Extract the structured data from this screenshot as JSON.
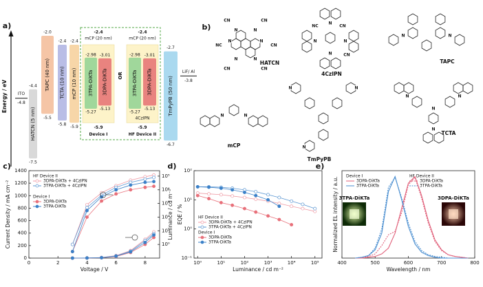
{
  "energy_diagram": {
    "label": "a)",
    "axis_label": "Energy / eV",
    "ito": {
      "name": "ITO",
      "level": {
        "value": -4.8,
        "label": "-4.8"
      }
    },
    "layers": [
      {
        "name": "HATCN (5 nm)",
        "color": "#d9d9d9",
        "lumo": {
          "value": -4.4,
          "label": "-4.4"
        },
        "homo": {
          "value": -7.5,
          "label": "-7.5"
        }
      },
      {
        "name": "TAPC (40 nm)",
        "color": "#f5c5a6",
        "lumo": {
          "value": -2.0,
          "label": "-2.0"
        },
        "homo": {
          "value": -5.5,
          "label": "-5.5"
        }
      },
      {
        "name": "TCTA (10 nm)",
        "color": "#b9bde6",
        "lumo": {
          "value": -2.4,
          "label": "-2.4"
        },
        "homo": {
          "value": -5.8,
          "label": "-5.8"
        }
      },
      {
        "name": "mCP (10 nm)",
        "color": "#f7d6a8",
        "lumo": {
          "value": -2.4,
          "label": "-2.4"
        },
        "homo": {
          "value": -5.9,
          "label": "-5.9"
        }
      },
      {
        "name": "TmPyPB (50 nm)",
        "color": "#aad9ef",
        "lumo": {
          "value": -2.7,
          "label": "-2.7"
        },
        "homo": {
          "value": -6.7,
          "label": "-6.7"
        }
      }
    ],
    "devices": [
      {
        "name": "Device I",
        "host": {
          "name": "mCP (20 nm)",
          "color": "#fdf3c9",
          "lumo": {
            "value": -2.4,
            "label": "-2.4"
          },
          "homo": {
            "value": -5.9,
            "label": "-5.9"
          }
        },
        "emitters": [
          {
            "name": "3TPA-DiKTa",
            "color": "#a0d79b",
            "lumo": {
              "value": -2.98,
              "label": "-2.98"
            },
            "homo": {
              "value": -5.27,
              "label": "-5.27"
            }
          },
          {
            "name": "3DPA-DiKTa",
            "color": "#e9837f",
            "lumo": {
              "value": -3.01,
              "label": "-3.01"
            },
            "homo": {
              "value": -5.13,
              "label": "-5.13"
            }
          }
        ]
      },
      {
        "name": "HF Device II",
        "dopant": "4CzIPN",
        "host": {
          "name": "mCP (20 nm)",
          "color": "#fdf3c9",
          "lumo": {
            "value": -2.4,
            "label": "-2.4"
          },
          "homo": {
            "value": -5.9,
            "label": "-5.9"
          }
        },
        "emitters": [
          {
            "name": "3TPA-DiKTa",
            "color": "#a0d79b",
            "lumo": {
              "value": -2.98,
              "label": "-2.98"
            },
            "homo": {
              "value": -5.27,
              "label": "-5.27"
            }
          },
          {
            "name": "3DPA-DiKTa",
            "color": "#e9837f",
            "lumo": {
              "value": -3.01,
              "label": "-3.01"
            },
            "homo": {
              "value": -5.13,
              "label": "-5.13"
            }
          }
        ]
      }
    ],
    "separator": "OR",
    "cathode": {
      "name": "LiF/ Al",
      "level": {
        "value": -3.8,
        "label": "-3.8"
      }
    }
  },
  "structures": {
    "label": "b)",
    "molecules": [
      {
        "name": "HATCN",
        "atoms": [
          "CN",
          "CN",
          "NC",
          "CN",
          "CN",
          "CN",
          "N",
          "N",
          "N",
          "N",
          "N",
          "N"
        ]
      },
      {
        "name": "4CzIPN",
        "atoms": [
          "CN",
          "NC",
          "CN",
          "N",
          "N",
          "N",
          "N"
        ]
      },
      {
        "name": "TAPC",
        "atoms": [
          "N",
          "N"
        ]
      },
      {
        "name": "TCTA",
        "atoms": [
          "N",
          "N",
          "N",
          "N"
        ]
      },
      {
        "name": "mCP",
        "atoms": [
          "N",
          "N"
        ]
      },
      {
        "name": "TmPyPB",
        "atoms": [
          "N",
          "N",
          "N"
        ]
      }
    ]
  },
  "chart_data": [
    {
      "type": "line",
      "panel_label": "c)",
      "xlabel": "Voltage / V",
      "ylabel": "Current Density / mA cm⁻²",
      "y2label": "Luminance / cd m⁻²",
      "markers": true,
      "x": [
        3,
        4,
        5,
        6,
        7,
        8,
        8.6
      ],
      "xlim": [
        0,
        9
      ],
      "xticks": [
        0,
        2,
        4,
        6,
        8
      ],
      "ylim": [
        0,
        1400
      ],
      "yticks": [
        0,
        200,
        400,
        600,
        800,
        1000,
        1200,
        1400
      ],
      "y2lim": [
        0.1,
        250000
      ],
      "y2log": true,
      "y2ticks": [
        {
          "value": 1,
          "label": "10⁰"
        },
        {
          "value": 10,
          "label": "10¹"
        },
        {
          "value": 100,
          "label": "10²"
        },
        {
          "value": 1000,
          "label": "10³"
        },
        {
          "value": 10000,
          "label": "10⁴"
        },
        {
          "value": 100000,
          "label": "10⁵"
        }
      ],
      "groups": [
        {
          "title": "HF Device II",
          "series": [
            {
              "name": "3DPA-DiKTa + 4CzIPN",
              "color": "#ef9aa4",
              "filled": false,
              "values": [
                0,
                2,
                10,
                40,
                120,
                300,
                420
              ],
              "y2_values": [
                1,
                800,
                6000,
                20000,
                50000,
                90000,
                120000
              ]
            },
            {
              "name": "3TPA-DiKTa + 4CzIPN",
              "color": "#5a96d2",
              "filled": false,
              "values": [
                0,
                2,
                8,
                35,
                110,
                280,
                390
              ],
              "y2_values": [
                1,
                500,
                4000,
                15000,
                35000,
                60000,
                80000
              ]
            }
          ]
        },
        {
          "title": "Device I",
          "series": [
            {
              "name": "3DPA-DiKTa",
              "color": "#e8707a",
              "filled": true,
              "values": [
                0,
                1,
                5,
                25,
                90,
                220,
                330
              ],
              "y2_values": [
                0.3,
                100,
                1500,
                5000,
                10000,
                15000,
                18000
              ]
            },
            {
              "name": "3TPA-DiKTa",
              "color": "#3a80c8",
              "filled": true,
              "values": [
                0,
                1,
                6,
                30,
                100,
                250,
                370
              ],
              "y2_values": [
                0.3,
                300,
                3000,
                10000,
                22000,
                35000,
                40000
              ]
            }
          ]
        }
      ]
    },
    {
      "type": "line",
      "panel_label": "d)",
      "xlabel": "Luminance / cd m⁻²",
      "ylabel": "EQE / %",
      "markers": true,
      "xlog": true,
      "ylog": true,
      "xlim": [
        0.7,
        200000
      ],
      "ylim": [
        0.1,
        100
      ],
      "xticks": [
        {
          "value": 1,
          "label": "10⁰"
        },
        {
          "value": 10,
          "label": "10¹"
        },
        {
          "value": 100,
          "label": "10²"
        },
        {
          "value": 1000,
          "label": "10³"
        },
        {
          "value": 10000,
          "label": "10⁴"
        },
        {
          "value": 100000,
          "label": "10⁵"
        }
      ],
      "yticks": [
        {
          "value": 0.1,
          "label": "10⁻¹"
        },
        {
          "value": 1,
          "label": "10⁰"
        },
        {
          "value": 10,
          "label": "10¹"
        },
        {
          "value": 100,
          "label": "10²"
        }
      ],
      "groups": [
        {
          "title": "HF Device II",
          "series": [
            {
              "name": "3DPA-DiKTa + 4CzIPN",
              "color": "#ef9aa4",
              "filled": false,
              "x": [
                1,
                3,
                10,
                30,
                100,
                300,
                1000,
                3000,
                10000,
                30000,
                100000
              ],
              "values": [
                17,
                16,
                15,
                13.5,
                12,
                10.5,
                9,
                7.5,
                6,
                5,
                4
              ]
            },
            {
              "name": "3TPA-DiKTa + 4CzIPN",
              "color": "#5a96d2",
              "filled": false,
              "x": [
                1,
                3,
                10,
                30,
                100,
                300,
                1000,
                3000,
                10000,
                30000,
                100000
              ],
              "values": [
                28,
                28,
                27,
                25,
                22,
                19,
                15,
                12,
                9,
                7,
                5
              ]
            }
          ]
        },
        {
          "title": "Device I",
          "series": [
            {
              "name": "3DPA-DiKTa",
              "color": "#e8707a",
              "filled": true,
              "x": [
                1,
                3,
                10,
                30,
                100,
                300,
                1000,
                3000,
                10000
              ],
              "values": [
                14,
                11,
                8,
                6.5,
                5,
                3.8,
                2.8,
                2.1,
                1.4
              ]
            },
            {
              "name": "3TPA-DiKTa",
              "color": "#3a80c8",
              "filled": true,
              "x": [
                1,
                3,
                10,
                30,
                100,
                300,
                1000,
                3000
              ],
              "values": [
                28,
                27,
                25,
                22,
                18,
                14,
                10,
                6
              ]
            }
          ]
        }
      ]
    },
    {
      "type": "line",
      "panel_label": "e)",
      "xlabel": "Wavelength / nm",
      "ylabel": "Normalized EL intensity / a.u.",
      "markers": false,
      "x": [
        440,
        460,
        480,
        500,
        520,
        540,
        560,
        580,
        600,
        620,
        640,
        660,
        680,
        700,
        720,
        740,
        760,
        780
      ],
      "xlim": [
        400,
        800
      ],
      "xticks": [
        400,
        500,
        600,
        700,
        800
      ],
      "ylim": [
        0,
        1.05
      ],
      "insets": [
        "3TPA-DiKTa",
        "3DPA-DiKTa"
      ],
      "groups": [
        {
          "title": "Device I",
          "series": [
            {
              "name": "3DPA-DiKTa",
              "color": "#e0607a",
              "line_style": "solid",
              "values": [
                0,
                0,
                0.01,
                0.02,
                0.05,
                0.12,
                0.3,
                0.6,
                0.9,
                0.98,
                0.75,
                0.45,
                0.22,
                0.1,
                0.04,
                0.02,
                0.01,
                0
              ]
            },
            {
              "name": "3TPA-DiKTa",
              "color": "#4a8ed0",
              "line_style": "solid",
              "values": [
                0,
                0.01,
                0.03,
                0.1,
                0.3,
                0.8,
                0.98,
                0.7,
                0.38,
                0.17,
                0.07,
                0.03,
                0.01,
                0,
                0,
                0,
                0,
                0
              ]
            }
          ]
        },
        {
          "title": "HF Device II",
          "series": [
            {
              "name": "3DPA-DiKTa",
              "color": "#e0607a",
              "line_style": "dotted",
              "values": [
                0,
                0,
                0.02,
                0.05,
                0.15,
                0.28,
                0.32,
                0.55,
                0.88,
                0.97,
                0.72,
                0.42,
                0.2,
                0.09,
                0.04,
                0.02,
                0.01,
                0
              ]
            },
            {
              "name": "3TPA-DiKTa",
              "color": "#4a8ed0",
              "line_style": "dotted",
              "values": [
                0,
                0.01,
                0.03,
                0.12,
                0.35,
                0.85,
                0.97,
                0.72,
                0.42,
                0.2,
                0.09,
                0.04,
                0.02,
                0.01,
                0,
                0,
                0,
                0
              ]
            }
          ]
        }
      ]
    }
  ]
}
